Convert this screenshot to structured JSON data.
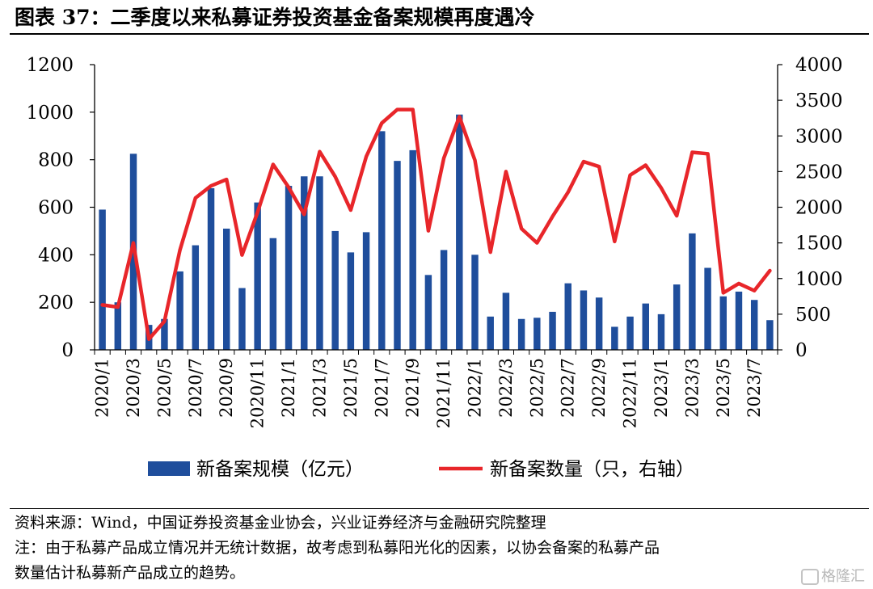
{
  "title": "图表 37：二季度以来私募证券投资基金备案规模再度遇冷",
  "source": "资料来源：Wind，中国证券投资基金业协会，兴业证券经济与金融研究院整理",
  "note_lines": [
    "注：由于私募产品成立情况并无统计数据，故考虑到私募阳光化的因素，以协会备案的私募产品",
    "数量估计私募新产品成立的趋势。"
  ],
  "watermark": "格隆汇",
  "chart_data": {
    "type": "bar+line",
    "categories": [
      "2020/1",
      "2020/2",
      "2020/3",
      "2020/4",
      "2020/5",
      "2020/6",
      "2020/7",
      "2020/8",
      "2020/9",
      "2020/10",
      "2020/11",
      "2020/12",
      "2021/1",
      "2021/2",
      "2021/3",
      "2021/4",
      "2021/5",
      "2021/6",
      "2021/7",
      "2021/8",
      "2021/9",
      "2021/10",
      "2021/11",
      "2021/12",
      "2022/1",
      "2022/2",
      "2022/3",
      "2022/4",
      "2022/5",
      "2022/6",
      "2022/7",
      "2022/8",
      "2022/9",
      "2022/10",
      "2022/11",
      "2022/12",
      "2023/1",
      "2023/2",
      "2023/3",
      "2023/4",
      "2023/5",
      "2023/6",
      "2023/7",
      "2023/8"
    ],
    "tick_labels": [
      "2020/1",
      "2020/3",
      "2020/5",
      "2020/7",
      "2020/9",
      "2020/11",
      "2021/1",
      "2021/3",
      "2021/5",
      "2021/7",
      "2021/9",
      "2021/11",
      "2022/1",
      "2022/3",
      "2022/5",
      "2022/7",
      "2022/9",
      "2022/11",
      "2023/1",
      "2023/3",
      "2023/5",
      "2023/7"
    ],
    "series": [
      {
        "name": "新备案规模（亿元）",
        "type": "bar",
        "axis": "left",
        "color": "#1f4e9c",
        "values": [
          590,
          200,
          825,
          105,
          130,
          330,
          440,
          680,
          510,
          260,
          620,
          470,
          690,
          730,
          730,
          500,
          410,
          495,
          920,
          795,
          840,
          315,
          420,
          990,
          400,
          140,
          240,
          130,
          135,
          160,
          280,
          250,
          220,
          97,
          140,
          195,
          150,
          275,
          490,
          345,
          225,
          245,
          210,
          125
        ]
      },
      {
        "name": "新备案数量（只，右轴）",
        "type": "line",
        "axis": "right",
        "color": "#e8262a",
        "values": [
          630,
          600,
          1500,
          150,
          400,
          1400,
          2130,
          2300,
          2390,
          1330,
          1930,
          2600,
          2280,
          1900,
          2780,
          2430,
          1960,
          2710,
          3180,
          3370,
          3370,
          1670,
          2690,
          3270,
          2660,
          1370,
          2500,
          1700,
          1500,
          1870,
          2210,
          2640,
          2570,
          1520,
          2450,
          2590,
          2270,
          1880,
          2770,
          2750,
          800,
          930,
          830,
          1110
        ]
      }
    ],
    "left_axis": {
      "ylim": [
        0,
        1200
      ],
      "ticks": [
        0,
        200,
        400,
        600,
        800,
        1000,
        1200
      ]
    },
    "right_axis": {
      "ylim": [
        0,
        4000
      ],
      "ticks": [
        0,
        500,
        1000,
        1500,
        2000,
        2500,
        3000,
        3500,
        4000
      ]
    },
    "legend_placement": "bottom-center",
    "grid": false
  }
}
